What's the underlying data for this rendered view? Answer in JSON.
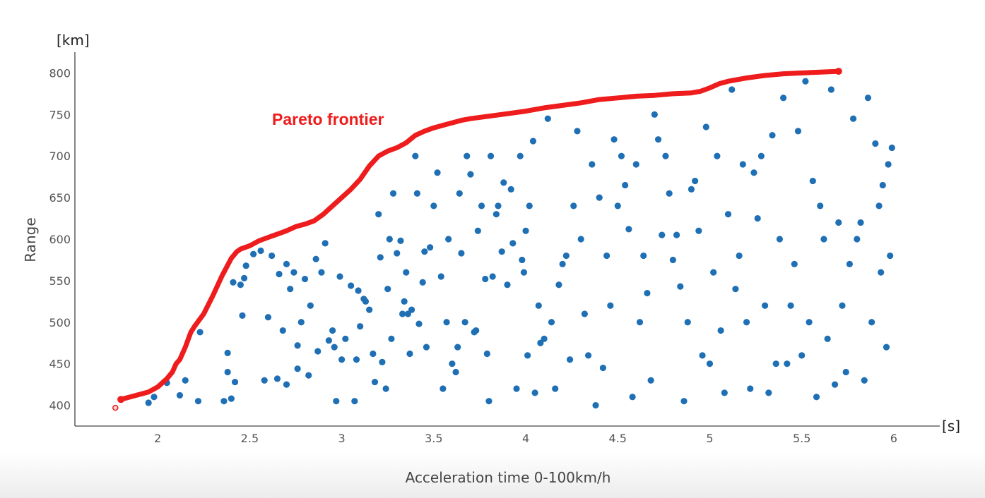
{
  "chart_data": {
    "type": "scatter",
    "xlabel": "Acceleration time 0-100km/h",
    "ylabel": "Range",
    "x_unit": "[s]",
    "y_unit": "[km]",
    "xlim": [
      1.55,
      6.25
    ],
    "ylim": [
      375,
      825
    ],
    "x_ticks": [
      2,
      2.5,
      3,
      3.5,
      4,
      4.5,
      5,
      5.5,
      6
    ],
    "y_ticks": [
      400,
      450,
      500,
      550,
      600,
      650,
      700,
      750,
      800
    ],
    "grid": false,
    "annotation": "Pareto frontier",
    "colors": {
      "points": "#1f6fb5",
      "frontier": "#ee1c1c"
    },
    "series": [
      {
        "type": "scatter",
        "points": [
          [
            1.95,
            403
          ],
          [
            1.98,
            410
          ],
          [
            2.05,
            427
          ],
          [
            2.12,
            412
          ],
          [
            2.15,
            430
          ],
          [
            2.22,
            405
          ],
          [
            2.23,
            488
          ],
          [
            2.36,
            405
          ],
          [
            2.38,
            463
          ],
          [
            2.38,
            440
          ],
          [
            2.4,
            408
          ],
          [
            2.42,
            428
          ],
          [
            2.41,
            548
          ],
          [
            2.45,
            545
          ],
          [
            2.46,
            508
          ],
          [
            2.47,
            553
          ],
          [
            2.48,
            568
          ],
          [
            2.52,
            582
          ],
          [
            2.56,
            586
          ],
          [
            2.58,
            430
          ],
          [
            2.6,
            506
          ],
          [
            2.62,
            580
          ],
          [
            2.65,
            432
          ],
          [
            2.66,
            558
          ],
          [
            2.68,
            490
          ],
          [
            2.7,
            570
          ],
          [
            2.7,
            425
          ],
          [
            2.72,
            540
          ],
          [
            2.74,
            560
          ],
          [
            2.76,
            444
          ],
          [
            2.76,
            472
          ],
          [
            2.78,
            500
          ],
          [
            2.8,
            552
          ],
          [
            2.82,
            436
          ],
          [
            2.83,
            520
          ],
          [
            2.86,
            576
          ],
          [
            2.87,
            465
          ],
          [
            2.89,
            560
          ],
          [
            2.91,
            595
          ],
          [
            2.93,
            478
          ],
          [
            2.95,
            490
          ],
          [
            2.96,
            470
          ],
          [
            2.97,
            405
          ],
          [
            2.99,
            555
          ],
          [
            3.0,
            455
          ],
          [
            3.02,
            480
          ],
          [
            3.05,
            544
          ],
          [
            3.07,
            405
          ],
          [
            3.08,
            455
          ],
          [
            3.09,
            538
          ],
          [
            3.1,
            495
          ],
          [
            3.12,
            528
          ],
          [
            3.13,
            525
          ],
          [
            3.15,
            515
          ],
          [
            3.17,
            462
          ],
          [
            3.18,
            428
          ],
          [
            3.2,
            630
          ],
          [
            3.21,
            578
          ],
          [
            3.22,
            452
          ],
          [
            3.24,
            420
          ],
          [
            3.25,
            540
          ],
          [
            3.26,
            600
          ],
          [
            3.27,
            480
          ],
          [
            3.28,
            655
          ],
          [
            3.3,
            583
          ],
          [
            3.32,
            598
          ],
          [
            3.33,
            510
          ],
          [
            3.34,
            525
          ],
          [
            3.35,
            560
          ],
          [
            3.36,
            510
          ],
          [
            3.37,
            462
          ],
          [
            3.38,
            515
          ],
          [
            3.4,
            700
          ],
          [
            3.41,
            655
          ],
          [
            3.42,
            498
          ],
          [
            3.44,
            548
          ],
          [
            3.45,
            585
          ],
          [
            3.46,
            470
          ],
          [
            3.48,
            590
          ],
          [
            3.5,
            640
          ],
          [
            3.52,
            680
          ],
          [
            3.54,
            555
          ],
          [
            3.55,
            420
          ],
          [
            3.57,
            500
          ],
          [
            3.58,
            600
          ],
          [
            3.6,
            450
          ],
          [
            3.62,
            440
          ],
          [
            3.63,
            470
          ],
          [
            3.64,
            655
          ],
          [
            3.65,
            583
          ],
          [
            3.67,
            500
          ],
          [
            3.68,
            700
          ],
          [
            3.7,
            678
          ],
          [
            3.72,
            488
          ],
          [
            3.73,
            490
          ],
          [
            3.74,
            610
          ],
          [
            3.76,
            640
          ],
          [
            3.78,
            552
          ],
          [
            3.79,
            462
          ],
          [
            3.8,
            405
          ],
          [
            3.81,
            700
          ],
          [
            3.82,
            555
          ],
          [
            3.84,
            630
          ],
          [
            3.85,
            640
          ],
          [
            3.87,
            585
          ],
          [
            3.88,
            668
          ],
          [
            3.9,
            545
          ],
          [
            3.92,
            660
          ],
          [
            3.93,
            595
          ],
          [
            3.95,
            420
          ],
          [
            3.97,
            700
          ],
          [
            3.98,
            575
          ],
          [
            3.99,
            560
          ],
          [
            4.0,
            610
          ],
          [
            4.01,
            460
          ],
          [
            4.02,
            640
          ],
          [
            4.04,
            718
          ],
          [
            4.05,
            415
          ],
          [
            4.07,
            520
          ],
          [
            4.08,
            475
          ],
          [
            4.1,
            480
          ],
          [
            4.12,
            745
          ],
          [
            4.14,
            500
          ],
          [
            4.16,
            420
          ],
          [
            4.18,
            545
          ],
          [
            4.2,
            570
          ],
          [
            4.22,
            580
          ],
          [
            4.24,
            455
          ],
          [
            4.26,
            640
          ],
          [
            4.28,
            730
          ],
          [
            4.3,
            600
          ],
          [
            4.32,
            510
          ],
          [
            4.34,
            460
          ],
          [
            4.36,
            690
          ],
          [
            4.38,
            400
          ],
          [
            4.4,
            650
          ],
          [
            4.42,
            445
          ],
          [
            4.44,
            580
          ],
          [
            4.46,
            520
          ],
          [
            4.48,
            720
          ],
          [
            4.5,
            640
          ],
          [
            4.52,
            700
          ],
          [
            4.54,
            665
          ],
          [
            4.56,
            612
          ],
          [
            4.58,
            410
          ],
          [
            4.6,
            690
          ],
          [
            4.62,
            500
          ],
          [
            4.64,
            580
          ],
          [
            4.66,
            535
          ],
          [
            4.68,
            430
          ],
          [
            4.7,
            750
          ],
          [
            4.72,
            720
          ],
          [
            4.74,
            605
          ],
          [
            4.76,
            700
          ],
          [
            4.78,
            655
          ],
          [
            4.8,
            575
          ],
          [
            4.82,
            605
          ],
          [
            4.84,
            543
          ],
          [
            4.86,
            405
          ],
          [
            4.88,
            500
          ],
          [
            4.9,
            660
          ],
          [
            4.92,
            670
          ],
          [
            4.94,
            610
          ],
          [
            4.96,
            460
          ],
          [
            4.98,
            735
          ],
          [
            5.0,
            450
          ],
          [
            5.02,
            560
          ],
          [
            5.04,
            700
          ],
          [
            5.06,
            490
          ],
          [
            5.08,
            415
          ],
          [
            5.1,
            630
          ],
          [
            5.12,
            780
          ],
          [
            5.14,
            540
          ],
          [
            5.16,
            580
          ],
          [
            5.18,
            690
          ],
          [
            5.2,
            500
          ],
          [
            5.22,
            420
          ],
          [
            5.24,
            680
          ],
          [
            5.26,
            625
          ],
          [
            5.28,
            700
          ],
          [
            5.3,
            520
          ],
          [
            5.32,
            415
          ],
          [
            5.34,
            725
          ],
          [
            5.36,
            450
          ],
          [
            5.38,
            600
          ],
          [
            5.4,
            770
          ],
          [
            5.42,
            450
          ],
          [
            5.44,
            520
          ],
          [
            5.46,
            570
          ],
          [
            5.48,
            730
          ],
          [
            5.5,
            460
          ],
          [
            5.52,
            790
          ],
          [
            5.54,
            500
          ],
          [
            5.56,
            670
          ],
          [
            5.58,
            410
          ],
          [
            5.6,
            640
          ],
          [
            5.62,
            600
          ],
          [
            5.64,
            480
          ],
          [
            5.66,
            780
          ],
          [
            5.68,
            425
          ],
          [
            5.7,
            620
          ],
          [
            5.72,
            520
          ],
          [
            5.74,
            440
          ],
          [
            5.76,
            570
          ],
          [
            5.78,
            745
          ],
          [
            5.8,
            600
          ],
          [
            5.82,
            620
          ],
          [
            5.84,
            430
          ],
          [
            5.86,
            770
          ],
          [
            5.88,
            500
          ],
          [
            5.9,
            715
          ],
          [
            5.92,
            640
          ],
          [
            5.93,
            560
          ],
          [
            5.94,
            665
          ],
          [
            5.96,
            470
          ],
          [
            5.97,
            690
          ],
          [
            5.98,
            580
          ],
          [
            5.99,
            710
          ]
        ]
      },
      {
        "type": "line",
        "points": [
          [
            1.8,
            407
          ],
          [
            1.85,
            410
          ],
          [
            1.9,
            413
          ],
          [
            1.95,
            416
          ],
          [
            2.0,
            422
          ],
          [
            2.05,
            432
          ],
          [
            2.08,
            440
          ],
          [
            2.1,
            450
          ],
          [
            2.12,
            455
          ],
          [
            2.15,
            470
          ],
          [
            2.18,
            488
          ],
          [
            2.2,
            495
          ],
          [
            2.25,
            510
          ],
          [
            2.3,
            532
          ],
          [
            2.35,
            556
          ],
          [
            2.4,
            577
          ],
          [
            2.43,
            585
          ],
          [
            2.45,
            588
          ],
          [
            2.5,
            592
          ],
          [
            2.55,
            598
          ],
          [
            2.6,
            602
          ],
          [
            2.65,
            606
          ],
          [
            2.7,
            610
          ],
          [
            2.75,
            615
          ],
          [
            2.8,
            618
          ],
          [
            2.85,
            622
          ],
          [
            2.9,
            630
          ],
          [
            2.95,
            640
          ],
          [
            3.0,
            650
          ],
          [
            3.05,
            660
          ],
          [
            3.1,
            672
          ],
          [
            3.15,
            688
          ],
          [
            3.2,
            700
          ],
          [
            3.25,
            706
          ],
          [
            3.3,
            710
          ],
          [
            3.35,
            716
          ],
          [
            3.4,
            725
          ],
          [
            3.45,
            730
          ],
          [
            3.5,
            734
          ],
          [
            3.55,
            737
          ],
          [
            3.6,
            740
          ],
          [
            3.65,
            743
          ],
          [
            3.7,
            745
          ],
          [
            3.8,
            748
          ],
          [
            3.9,
            751
          ],
          [
            4.0,
            754
          ],
          [
            4.1,
            758
          ],
          [
            4.2,
            761
          ],
          [
            4.3,
            764
          ],
          [
            4.4,
            768
          ],
          [
            4.5,
            770
          ],
          [
            4.6,
            772
          ],
          [
            4.7,
            773
          ],
          [
            4.8,
            775
          ],
          [
            4.9,
            776
          ],
          [
            4.95,
            778
          ],
          [
            5.0,
            782
          ],
          [
            5.05,
            787
          ],
          [
            5.1,
            790
          ],
          [
            5.2,
            794
          ],
          [
            5.3,
            797
          ],
          [
            5.4,
            799
          ],
          [
            5.5,
            800
          ],
          [
            5.6,
            801
          ],
          [
            5.7,
            802
          ]
        ]
      },
      {
        "type": "marker",
        "points": [
          [
            1.77,
            397
          ]
        ]
      }
    ]
  }
}
